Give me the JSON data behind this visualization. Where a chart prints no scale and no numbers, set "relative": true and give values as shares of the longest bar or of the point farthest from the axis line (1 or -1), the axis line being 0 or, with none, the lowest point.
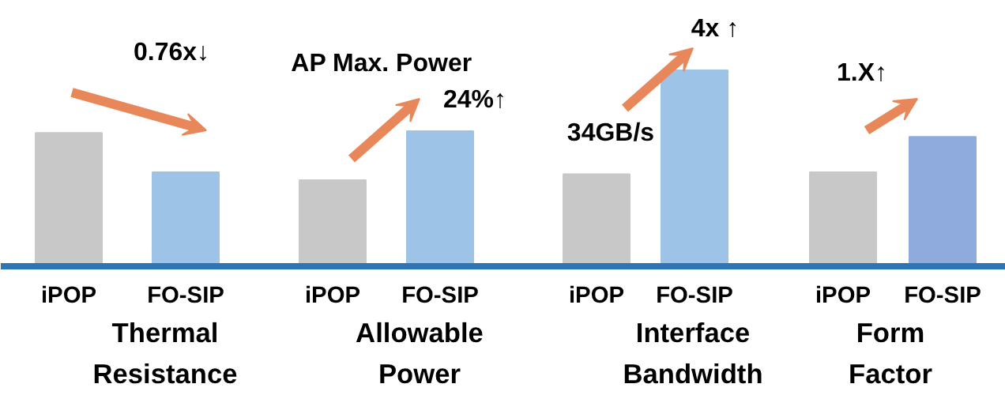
{
  "chart_data": {
    "type": "bar",
    "relative": true,
    "categories": [
      "iPOP",
      "FO-SIP",
      "iPOP",
      "FO-SIP",
      "iPOP",
      "FO-SIP",
      "iPOP",
      "FO-SIP"
    ],
    "values": [
      0.68,
      0.48,
      0.44,
      0.69,
      0.47,
      1,
      0.48,
      0.66
    ],
    "colors": [
      "#c8c8c8",
      "#9dc3e6",
      "#c8c8c8",
      "#9dc3e6",
      "#c8c8c8",
      "#9dc3e6",
      "#c8c8c8",
      "#8faadc"
    ],
    "annotations": [
      "Thermal\nResistance",
      "Allowable\nPower",
      "Interface\nBandwidth",
      "Form\nFactor",
      "0.76x↓",
      "AP Max. Power",
      "24%↑",
      "34GB/s",
      "4x ↑",
      "1.X↑"
    ],
    "grid": false
  }
}
